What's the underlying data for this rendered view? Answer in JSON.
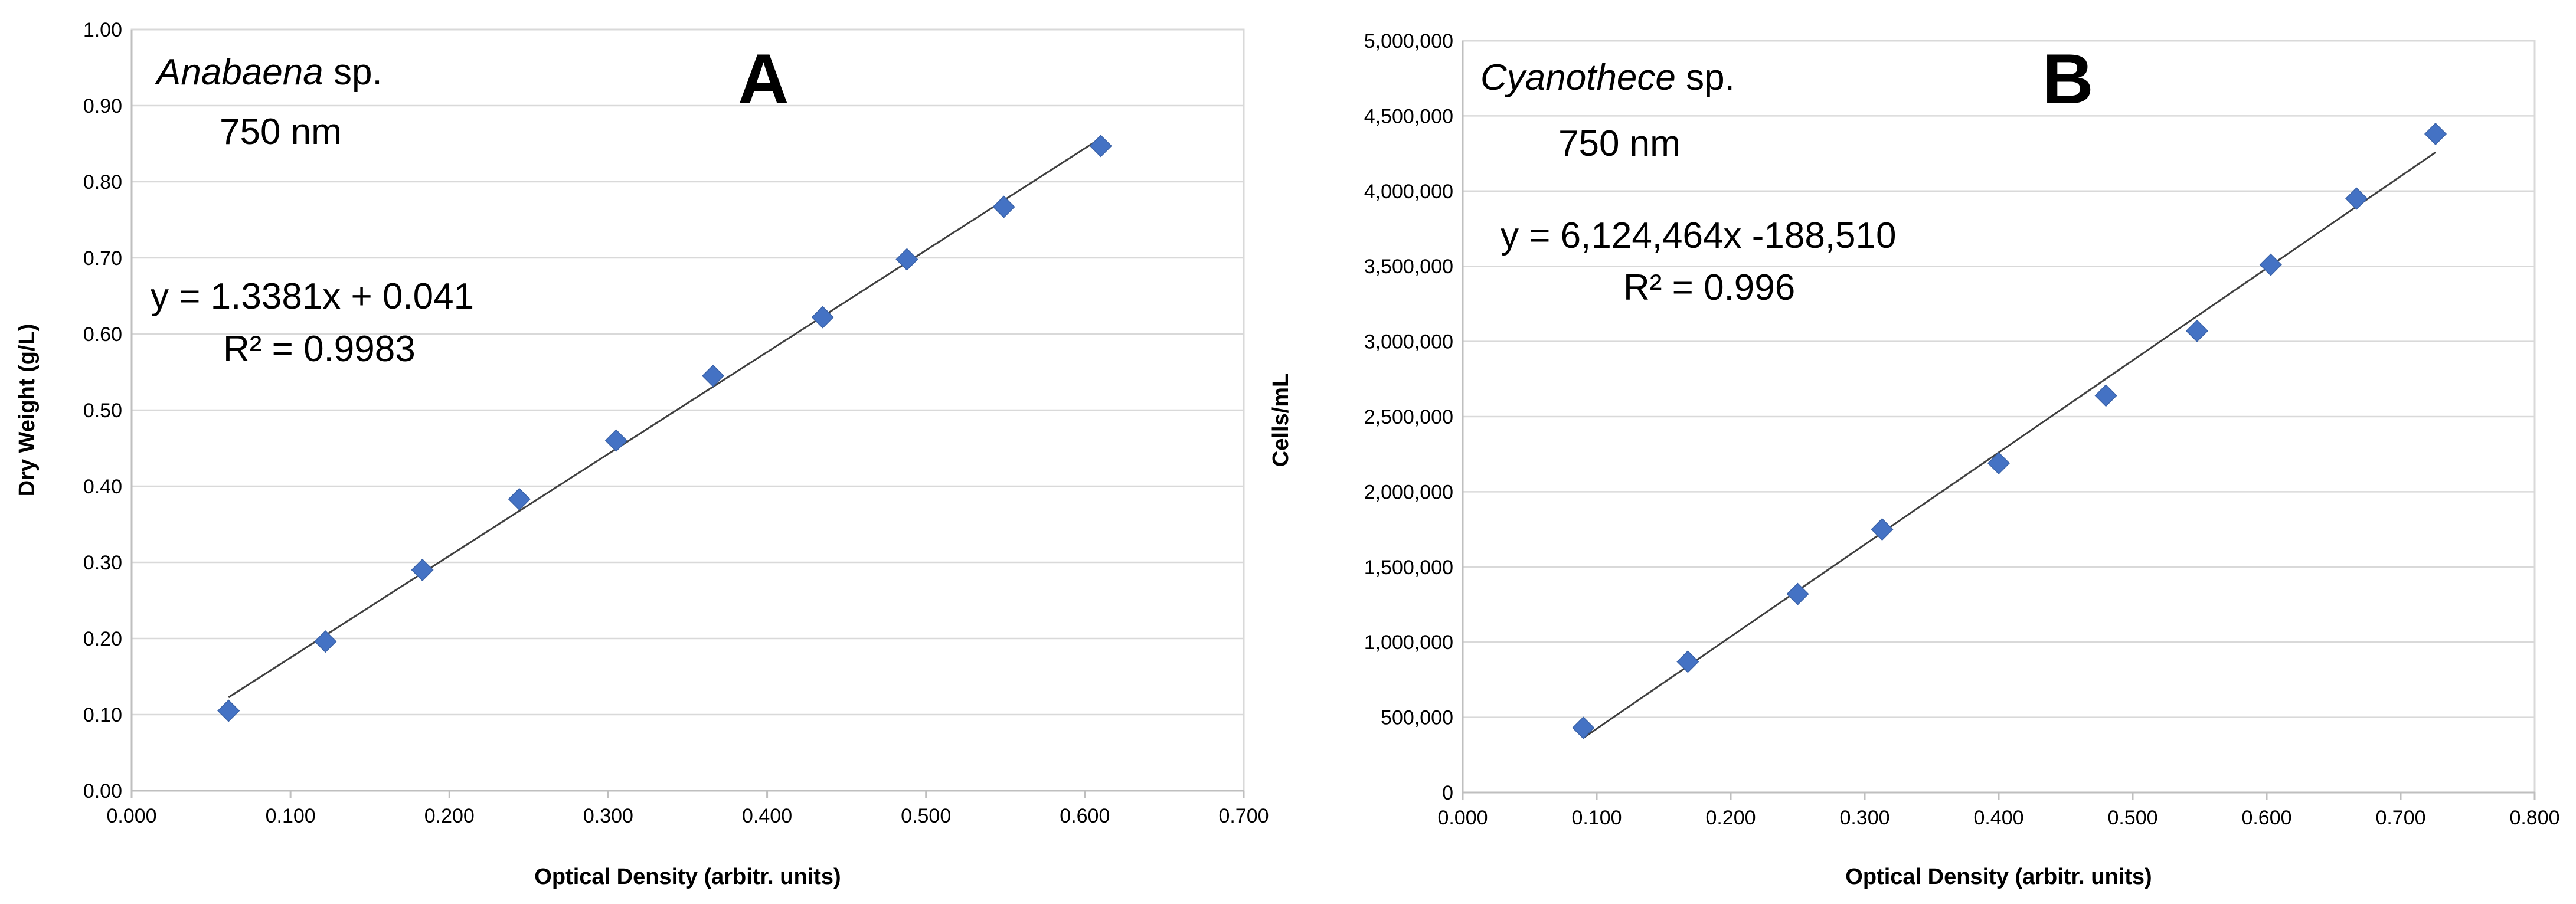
{
  "chart_data": [
    {
      "type": "scatter",
      "panel_letter": "A",
      "species_italic": "Anabaena",
      "species_suffix": " sp.",
      "wavelength": "750 nm",
      "equation": "y = 1.3381x + 0.041",
      "r2": "R² = 0.9983",
      "xlabel": "Optical Density (arbitr. units)",
      "ylabel": "Dry Weight (g/L)",
      "xlim": [
        0,
        0.7
      ],
      "ylim": [
        0,
        1.0
      ],
      "xticks": [
        0,
        0.1,
        0.2,
        0.3,
        0.4,
        0.5,
        0.6,
        0.7
      ],
      "yticks": [
        0,
        0.1,
        0.2,
        0.3,
        0.4,
        0.5,
        0.6,
        0.7,
        0.8,
        0.9,
        1.0
      ],
      "xtick_labels": [
        "0.000",
        "0.100",
        "0.200",
        "0.300",
        "0.400",
        "0.500",
        "0.600",
        "0.700"
      ],
      "ytick_labels": [
        "0.00",
        "0.10",
        "0.20",
        "0.30",
        "0.40",
        "0.50",
        "0.60",
        "0.70",
        "0.80",
        "0.90",
        "1.00"
      ],
      "trendline": {
        "slope": 1.3381,
        "intercept": 0.041,
        "x_range": [
          0.061,
          0.61
        ]
      },
      "series": [
        {
          "name": "Anabaena sp.",
          "color": "#4472c4",
          "marker": "diamond",
          "x": [
            0.061,
            0.122,
            0.183,
            0.244,
            0.305,
            0.366,
            0.435,
            0.488,
            0.549,
            0.61
          ],
          "y": [
            0.105,
            0.196,
            0.29,
            0.383,
            0.46,
            0.545,
            0.622,
            0.698,
            0.767,
            0.847
          ]
        }
      ],
      "grid": true,
      "legend": "none"
    },
    {
      "type": "scatter",
      "panel_letter": "B",
      "species_italic": "Cyanothece",
      "species_suffix": " sp.",
      "wavelength": "750 nm",
      "equation": "y = 6,124,464x -188,510",
      "r2": "R² = 0.996",
      "xlabel": "Optical Density (arbitr. units)",
      "ylabel": "Cells/mL",
      "xlim": [
        0,
        0.8
      ],
      "ylim": [
        0,
        5000000
      ],
      "xticks": [
        0,
        0.1,
        0.2,
        0.3,
        0.4,
        0.5,
        0.6,
        0.7,
        0.8
      ],
      "yticks": [
        0,
        500000,
        1000000,
        1500000,
        2000000,
        2500000,
        3000000,
        3500000,
        4000000,
        4500000,
        5000000
      ],
      "xtick_labels": [
        "0.000",
        "0.100",
        "0.200",
        "0.300",
        "0.400",
        "0.500",
        "0.600",
        "0.700",
        "0.800"
      ],
      "ytick_labels": [
        "0",
        "500,000",
        "1,000,000",
        "1,500,000",
        "2,000,000",
        "2,500,000",
        "3,000,000",
        "3,500,000",
        "4,000,000",
        "4,500,000",
        "5,000,000"
      ],
      "trendline": {
        "slope": 6124464,
        "intercept": -188510,
        "x_range": [
          0.09,
          0.726
        ]
      },
      "series": [
        {
          "name": "Cyanothece sp.",
          "color": "#4472c4",
          "marker": "diamond",
          "x": [
            0.09,
            0.168,
            0.25,
            0.313,
            0.4,
            0.48,
            0.548,
            0.603,
            0.667,
            0.726
          ],
          "y": [
            430000,
            870000,
            1320000,
            1750000,
            2190000,
            2640000,
            3070000,
            3510000,
            3950000,
            4380000
          ]
        }
      ],
      "grid": true,
      "legend": "none"
    }
  ]
}
